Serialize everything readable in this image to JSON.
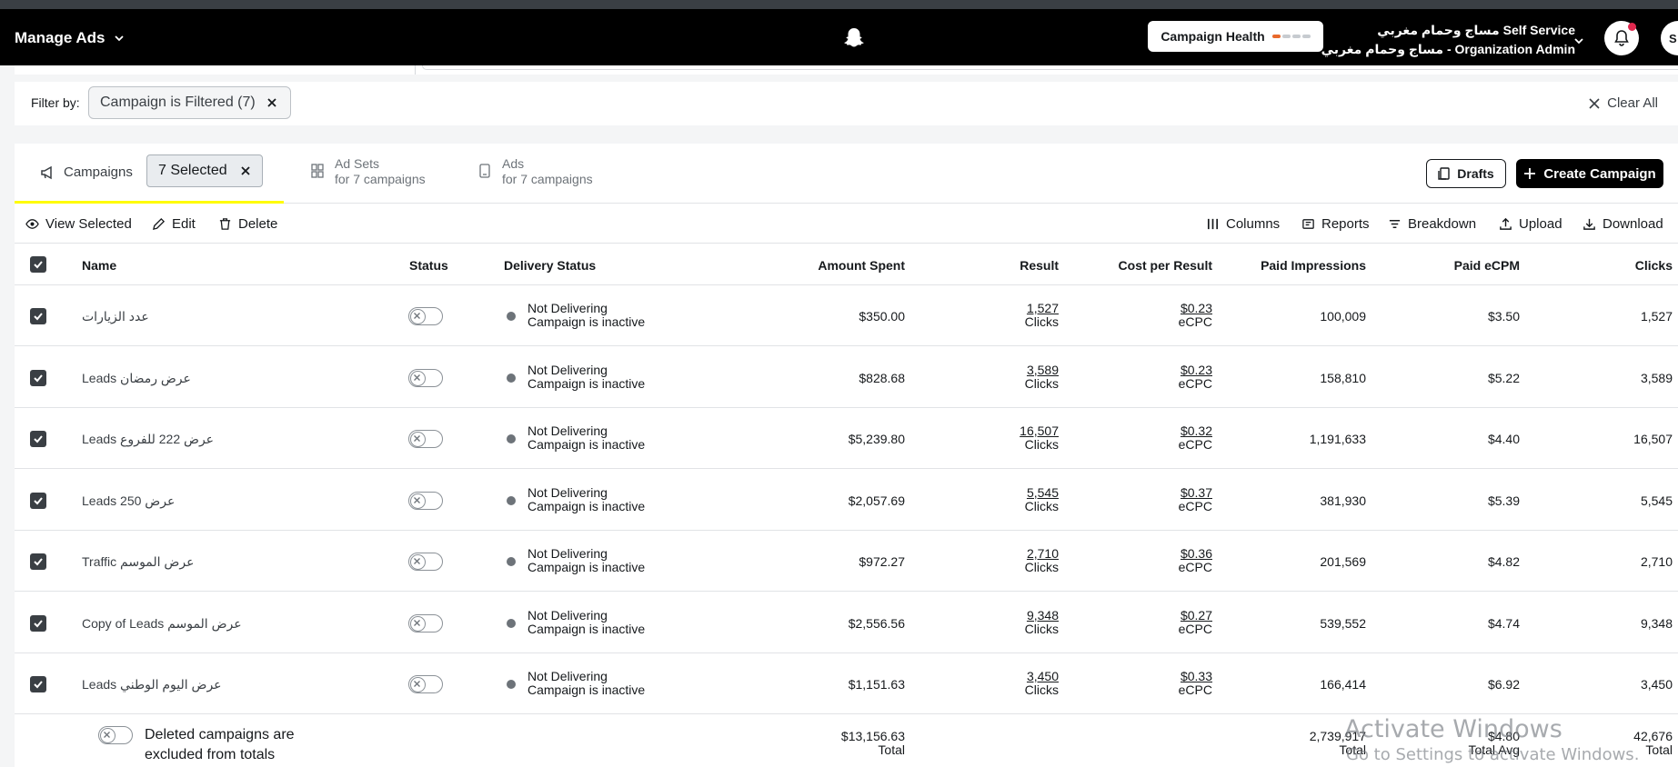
{
  "header": {
    "manage_ads": "Manage Ads",
    "campaign_health": "Campaign Health",
    "org_line1": "مساج وحمام مغربي Self Service",
    "org_line2": "مساج وحمام مغربي - Organization Admin",
    "avatar_initial": "S"
  },
  "filter": {
    "label": "Filter by:",
    "chip": "Campaign is  Filtered (7)",
    "clear_all": "Clear All"
  },
  "tabs": {
    "campaigns": "Campaigns",
    "selected": "7 Selected",
    "adsets_title": "Ad Sets",
    "adsets_sub": "for 7 campaigns",
    "ads_title": "Ads",
    "ads_sub": "for 7 campaigns",
    "drafts": "Drafts",
    "create": "Create Campaign"
  },
  "toolbar": {
    "view_selected": "View Selected",
    "edit": "Edit",
    "delete": "Delete",
    "columns": "Columns",
    "reports": "Reports",
    "breakdown": "Breakdown",
    "upload": "Upload",
    "download": "Download"
  },
  "table": {
    "headers": {
      "name": "Name",
      "status": "Status",
      "delivery": "Delivery Status",
      "spent": "Amount Spent",
      "result": "Result",
      "cpr": "Cost per Result",
      "impressions": "Paid Impressions",
      "ecpm": "Paid eCPM",
      "clicks": "Clicks"
    },
    "rows": [
      {
        "name": "عدد الزيارات",
        "delivery1": "Not Delivering",
        "delivery2": "Campaign is inactive",
        "spent": "$350.00",
        "result": "1,527",
        "result_unit": "Clicks",
        "cpr": "$0.23",
        "cpr_unit": "eCPC",
        "impressions": "100,009",
        "ecpm": "$3.50",
        "clicks": "1,527"
      },
      {
        "name": "Leads عرض رمضان",
        "delivery1": "Not Delivering",
        "delivery2": "Campaign is inactive",
        "spent": "$828.68",
        "result": "3,589",
        "result_unit": "Clicks",
        "cpr": "$0.23",
        "cpr_unit": "eCPC",
        "impressions": "158,810",
        "ecpm": "$5.22",
        "clicks": "3,589"
      },
      {
        "name": "Leads عرض 222 للفروع",
        "delivery1": "Not Delivering",
        "delivery2": "Campaign is inactive",
        "spent": "$5,239.80",
        "result": "16,507",
        "result_unit": "Clicks",
        "cpr": "$0.32",
        "cpr_unit": "eCPC",
        "impressions": "1,191,633",
        "ecpm": "$4.40",
        "clicks": "16,507"
      },
      {
        "name": "Leads 250 عرض",
        "delivery1": "Not Delivering",
        "delivery2": "Campaign is inactive",
        "spent": "$2,057.69",
        "result": "5,545",
        "result_unit": "Clicks",
        "cpr": "$0.37",
        "cpr_unit": "eCPC",
        "impressions": "381,930",
        "ecpm": "$5.39",
        "clicks": "5,545"
      },
      {
        "name": "Traffic عرض الموسم",
        "delivery1": "Not Delivering",
        "delivery2": "Campaign is inactive",
        "spent": "$972.27",
        "result": "2,710",
        "result_unit": "Clicks",
        "cpr": "$0.36",
        "cpr_unit": "eCPC",
        "impressions": "201,569",
        "ecpm": "$4.82",
        "clicks": "2,710"
      },
      {
        "name": "Copy of Leads عرض الموسم",
        "delivery1": "Not Delivering",
        "delivery2": "Campaign is inactive",
        "spent": "$2,556.56",
        "result": "9,348",
        "result_unit": "Clicks",
        "cpr": "$0.27",
        "cpr_unit": "eCPC",
        "impressions": "539,552",
        "ecpm": "$4.74",
        "clicks": "9,348"
      },
      {
        "name": "Leads عرض اليوم الوطني",
        "delivery1": "Not Delivering",
        "delivery2": "Campaign is inactive",
        "spent": "$1,151.63",
        "result": "3,450",
        "result_unit": "Clicks",
        "cpr": "$0.33",
        "cpr_unit": "eCPC",
        "impressions": "166,414",
        "ecpm": "$6.92",
        "clicks": "3,450"
      }
    ],
    "footer": {
      "note_line1": "Deleted campaigns are",
      "note_line2": "excluded from totals",
      "spent_total": "$13,156.63",
      "spent_label": "Total",
      "impressions_total": "2,739,917",
      "impressions_label": "Total",
      "ecpm_total": "$4.80",
      "ecpm_label": "Total Avg",
      "clicks_total": "42,676",
      "clicks_label": "Total"
    }
  },
  "watermark": {
    "line1": "Activate Windows",
    "line2": "Go to Settings to activate Windows."
  }
}
